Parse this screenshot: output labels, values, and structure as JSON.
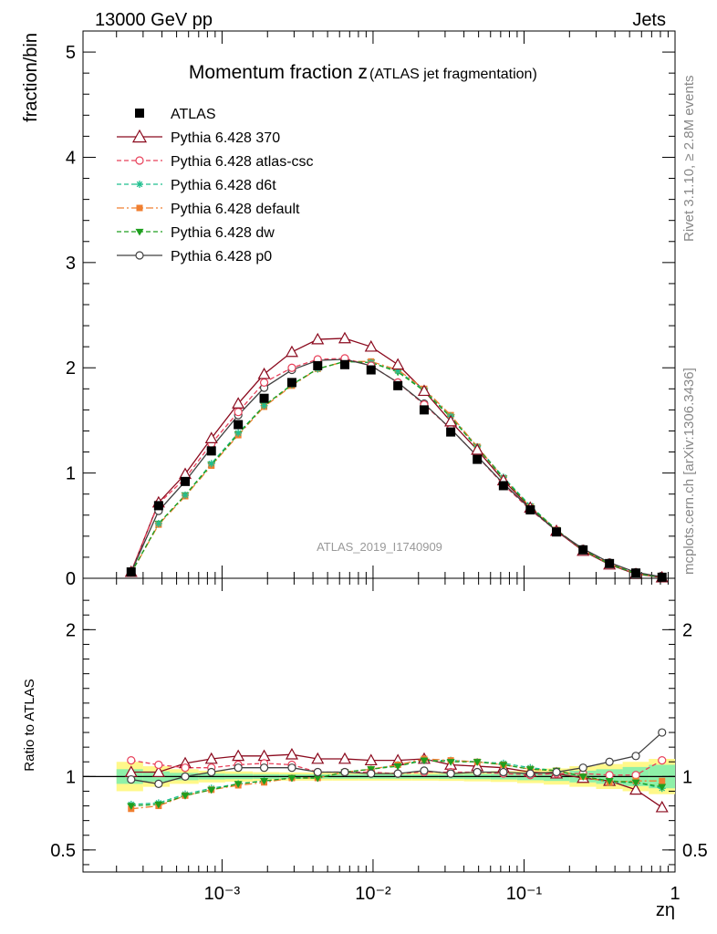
{
  "header": {
    "left": "13000 GeV pp",
    "right": "Jets"
  },
  "side_labels": {
    "rivet": "Rivet 3.1.10, ≥ 2.8M events",
    "mcplots": "mcplots.cern.ch [arXiv:1306.3436]"
  },
  "colors": {
    "ATLAS": "#000000",
    "p370": "#8b0a1e",
    "atlas_csc": "#e8405a",
    "d6t": "#1fbf8f",
    "default": "#f07f30",
    "dw": "#1e9f1e",
    "p0": "#404040",
    "band_inner": "#8ef0a8",
    "band_outer": "#fff88a"
  },
  "chart_data": [
    {
      "type": "line",
      "title": "Momentum fraction z",
      "subtitle": "(ATLAS jet fragmentation)",
      "ylabel": "fraction/bin",
      "xlabel": "zη",
      "x_scale": "log",
      "xlim": [
        0.00012,
        1.0
      ],
      "ylim": [
        0,
        5.2
      ],
      "yticks": [
        "0",
        "1",
        "2",
        "3",
        "4",
        "5"
      ],
      "xticks": [
        "10⁻³",
        "10⁻²",
        "10⁻¹",
        "1"
      ],
      "watermark": "ATLAS_2019_I1740909",
      "legend_position": "top-left",
      "x": [
        0.00025,
        0.00038,
        0.00057,
        0.00085,
        0.00128,
        0.0019,
        0.0029,
        0.0043,
        0.0065,
        0.0097,
        0.0146,
        0.0218,
        0.0327,
        0.049,
        0.073,
        0.11,
        0.164,
        0.246,
        0.368,
        0.55,
        0.82
      ],
      "series": [
        {
          "name": "ATLAS",
          "key": "ATLAS",
          "marker": "square",
          "line": "none",
          "values": [
            0.06,
            0.69,
            0.92,
            1.21,
            1.46,
            1.71,
            1.86,
            2.02,
            2.03,
            1.98,
            1.83,
            1.6,
            1.39,
            1.13,
            0.88,
            0.65,
            0.44,
            0.27,
            0.14,
            0.05,
            0.01
          ]
        },
        {
          "name": "Pythia 6.428 370",
          "key": "p370",
          "marker": "triangle-open",
          "line": "solid",
          "values": [
            0.06,
            0.72,
            0.99,
            1.33,
            1.66,
            1.94,
            2.15,
            2.27,
            2.28,
            2.2,
            2.03,
            1.78,
            1.49,
            1.22,
            0.93,
            0.67,
            0.45,
            0.26,
            0.13,
            0.04,
            0.008
          ]
        },
        {
          "name": "Pythia 6.428 atlas-csc",
          "key": "atlas_csc",
          "marker": "circle-open",
          "line": "dashed",
          "values": [
            0.065,
            0.71,
            0.95,
            1.28,
            1.58,
            1.86,
            2.0,
            2.08,
            2.09,
            2.02,
            1.86,
            1.65,
            1.42,
            1.16,
            0.89,
            0.65,
            0.45,
            0.27,
            0.14,
            0.05,
            0.011
          ]
        },
        {
          "name": "Pythia 6.428 d6t",
          "key": "d6t",
          "marker": "star",
          "line": "dashed",
          "values": [
            0.05,
            0.52,
            0.79,
            1.09,
            1.38,
            1.64,
            1.84,
            1.99,
            2.06,
            2.05,
            1.97,
            1.79,
            1.54,
            1.25,
            0.96,
            0.69,
            0.46,
            0.27,
            0.135,
            0.045,
            0.009
          ]
        },
        {
          "name": "Pythia 6.428 default",
          "key": "default",
          "marker": "square-small",
          "line": "dashdot",
          "values": [
            0.047,
            0.51,
            0.78,
            1.07,
            1.36,
            1.63,
            1.83,
            1.99,
            2.06,
            2.06,
            1.98,
            1.8,
            1.55,
            1.25,
            0.95,
            0.68,
            0.46,
            0.27,
            0.135,
            0.045,
            0.009
          ]
        },
        {
          "name": "Pythia 6.428 dw",
          "key": "dw",
          "marker": "triangle-down",
          "line": "dashed",
          "values": [
            0.049,
            0.52,
            0.79,
            1.08,
            1.37,
            1.64,
            1.84,
            1.99,
            2.06,
            2.05,
            1.96,
            1.78,
            1.53,
            1.24,
            0.95,
            0.68,
            0.46,
            0.27,
            0.135,
            0.045,
            0.009
          ]
        },
        {
          "name": "Pythia 6.428 p0",
          "key": "p0",
          "marker": "circle-open",
          "line": "solid",
          "values": [
            0.059,
            0.64,
            0.92,
            1.24,
            1.55,
            1.81,
            1.98,
            2.07,
            2.08,
            2.02,
            1.86,
            1.66,
            1.42,
            1.16,
            0.9,
            0.66,
            0.45,
            0.28,
            0.15,
            0.057,
            0.013
          ]
        }
      ]
    },
    {
      "type": "line",
      "ylabel": "Ratio to ATLAS",
      "xlabel": "zη",
      "x_scale": "log",
      "xlim": [
        0.00012,
        1.0
      ],
      "ylim": [
        0.35,
        2.35
      ],
      "yticks": [
        "0.5",
        "1",
        "2"
      ],
      "x": [
        0.00025,
        0.00038,
        0.00057,
        0.00085,
        0.00128,
        0.0019,
        0.0029,
        0.0043,
        0.0065,
        0.0097,
        0.0146,
        0.0218,
        0.0327,
        0.049,
        0.073,
        0.11,
        0.164,
        0.246,
        0.368,
        0.55,
        0.82
      ],
      "uncertainty_band": {
        "x_edges": [
          0.0002,
          0.0003,
          0.00045,
          0.0007,
          0.00105,
          0.0016,
          0.0024,
          0.0036,
          0.0054,
          0.0081,
          0.012,
          0.018,
          0.027,
          0.04,
          0.06,
          0.09,
          0.135,
          0.2,
          0.3,
          0.45,
          0.67,
          1.0
        ],
        "inner": [
          0.05,
          0.035,
          0.025,
          0.02,
          0.018,
          0.016,
          0.015,
          0.015,
          0.015,
          0.015,
          0.015,
          0.015,
          0.016,
          0.018,
          0.02,
          0.025,
          0.03,
          0.04,
          0.05,
          0.065,
          0.08
        ],
        "outer": [
          0.1,
          0.07,
          0.05,
          0.04,
          0.035,
          0.03,
          0.028,
          0.028,
          0.028,
          0.028,
          0.028,
          0.028,
          0.03,
          0.033,
          0.037,
          0.045,
          0.055,
          0.07,
          0.085,
          0.1,
          0.12
        ]
      },
      "series": [
        {
          "name": "Pythia 6.428 370",
          "key": "p370",
          "values": [
            1.03,
            1.03,
            1.09,
            1.12,
            1.14,
            1.14,
            1.15,
            1.12,
            1.12,
            1.11,
            1.11,
            1.12,
            1.08,
            1.07,
            1.06,
            1.03,
            1.02,
            0.99,
            0.97,
            0.91,
            0.79
          ]
        },
        {
          "name": "Pythia 6.428 atlas-csc",
          "key": "atlas_csc",
          "values": [
            1.11,
            1.08,
            1.06,
            1.06,
            1.08,
            1.09,
            1.08,
            1.03,
            1.03,
            1.03,
            1.02,
            1.03,
            1.03,
            1.03,
            1.02,
            1.01,
            1.02,
            1.02,
            1.01,
            1.01,
            1.11
          ]
        },
        {
          "name": "Pythia 6.428 d6t",
          "key": "d6t",
          "values": [
            0.81,
            0.82,
            0.88,
            0.92,
            0.95,
            0.97,
            0.99,
            0.99,
            1.03,
            1.05,
            1.08,
            1.11,
            1.11,
            1.1,
            1.09,
            1.06,
            1.04,
            1.0,
            0.96,
            0.96,
            0.92
          ]
        },
        {
          "name": "Pythia 6.428 default",
          "key": "default",
          "values": [
            0.78,
            0.8,
            0.87,
            0.91,
            0.94,
            0.96,
            0.99,
            0.99,
            1.03,
            1.05,
            1.08,
            1.12,
            1.11,
            1.1,
            1.08,
            1.05,
            1.04,
            1.0,
            0.96,
            0.97,
            0.97
          ]
        },
        {
          "name": "Pythia 6.428 dw",
          "key": "dw",
          "values": [
            0.8,
            0.81,
            0.87,
            0.91,
            0.95,
            0.97,
            0.99,
            0.99,
            1.03,
            1.05,
            1.07,
            1.11,
            1.1,
            1.1,
            1.08,
            1.05,
            1.04,
            1.0,
            0.97,
            0.96,
            0.93
          ]
        },
        {
          "name": "Pythia 6.428 p0",
          "key": "p0",
          "values": [
            0.98,
            0.95,
            1.0,
            1.03,
            1.06,
            1.06,
            1.06,
            1.03,
            1.03,
            1.02,
            1.02,
            1.04,
            1.02,
            1.03,
            1.03,
            1.02,
            1.03,
            1.06,
            1.1,
            1.14,
            1.3
          ]
        }
      ]
    }
  ]
}
